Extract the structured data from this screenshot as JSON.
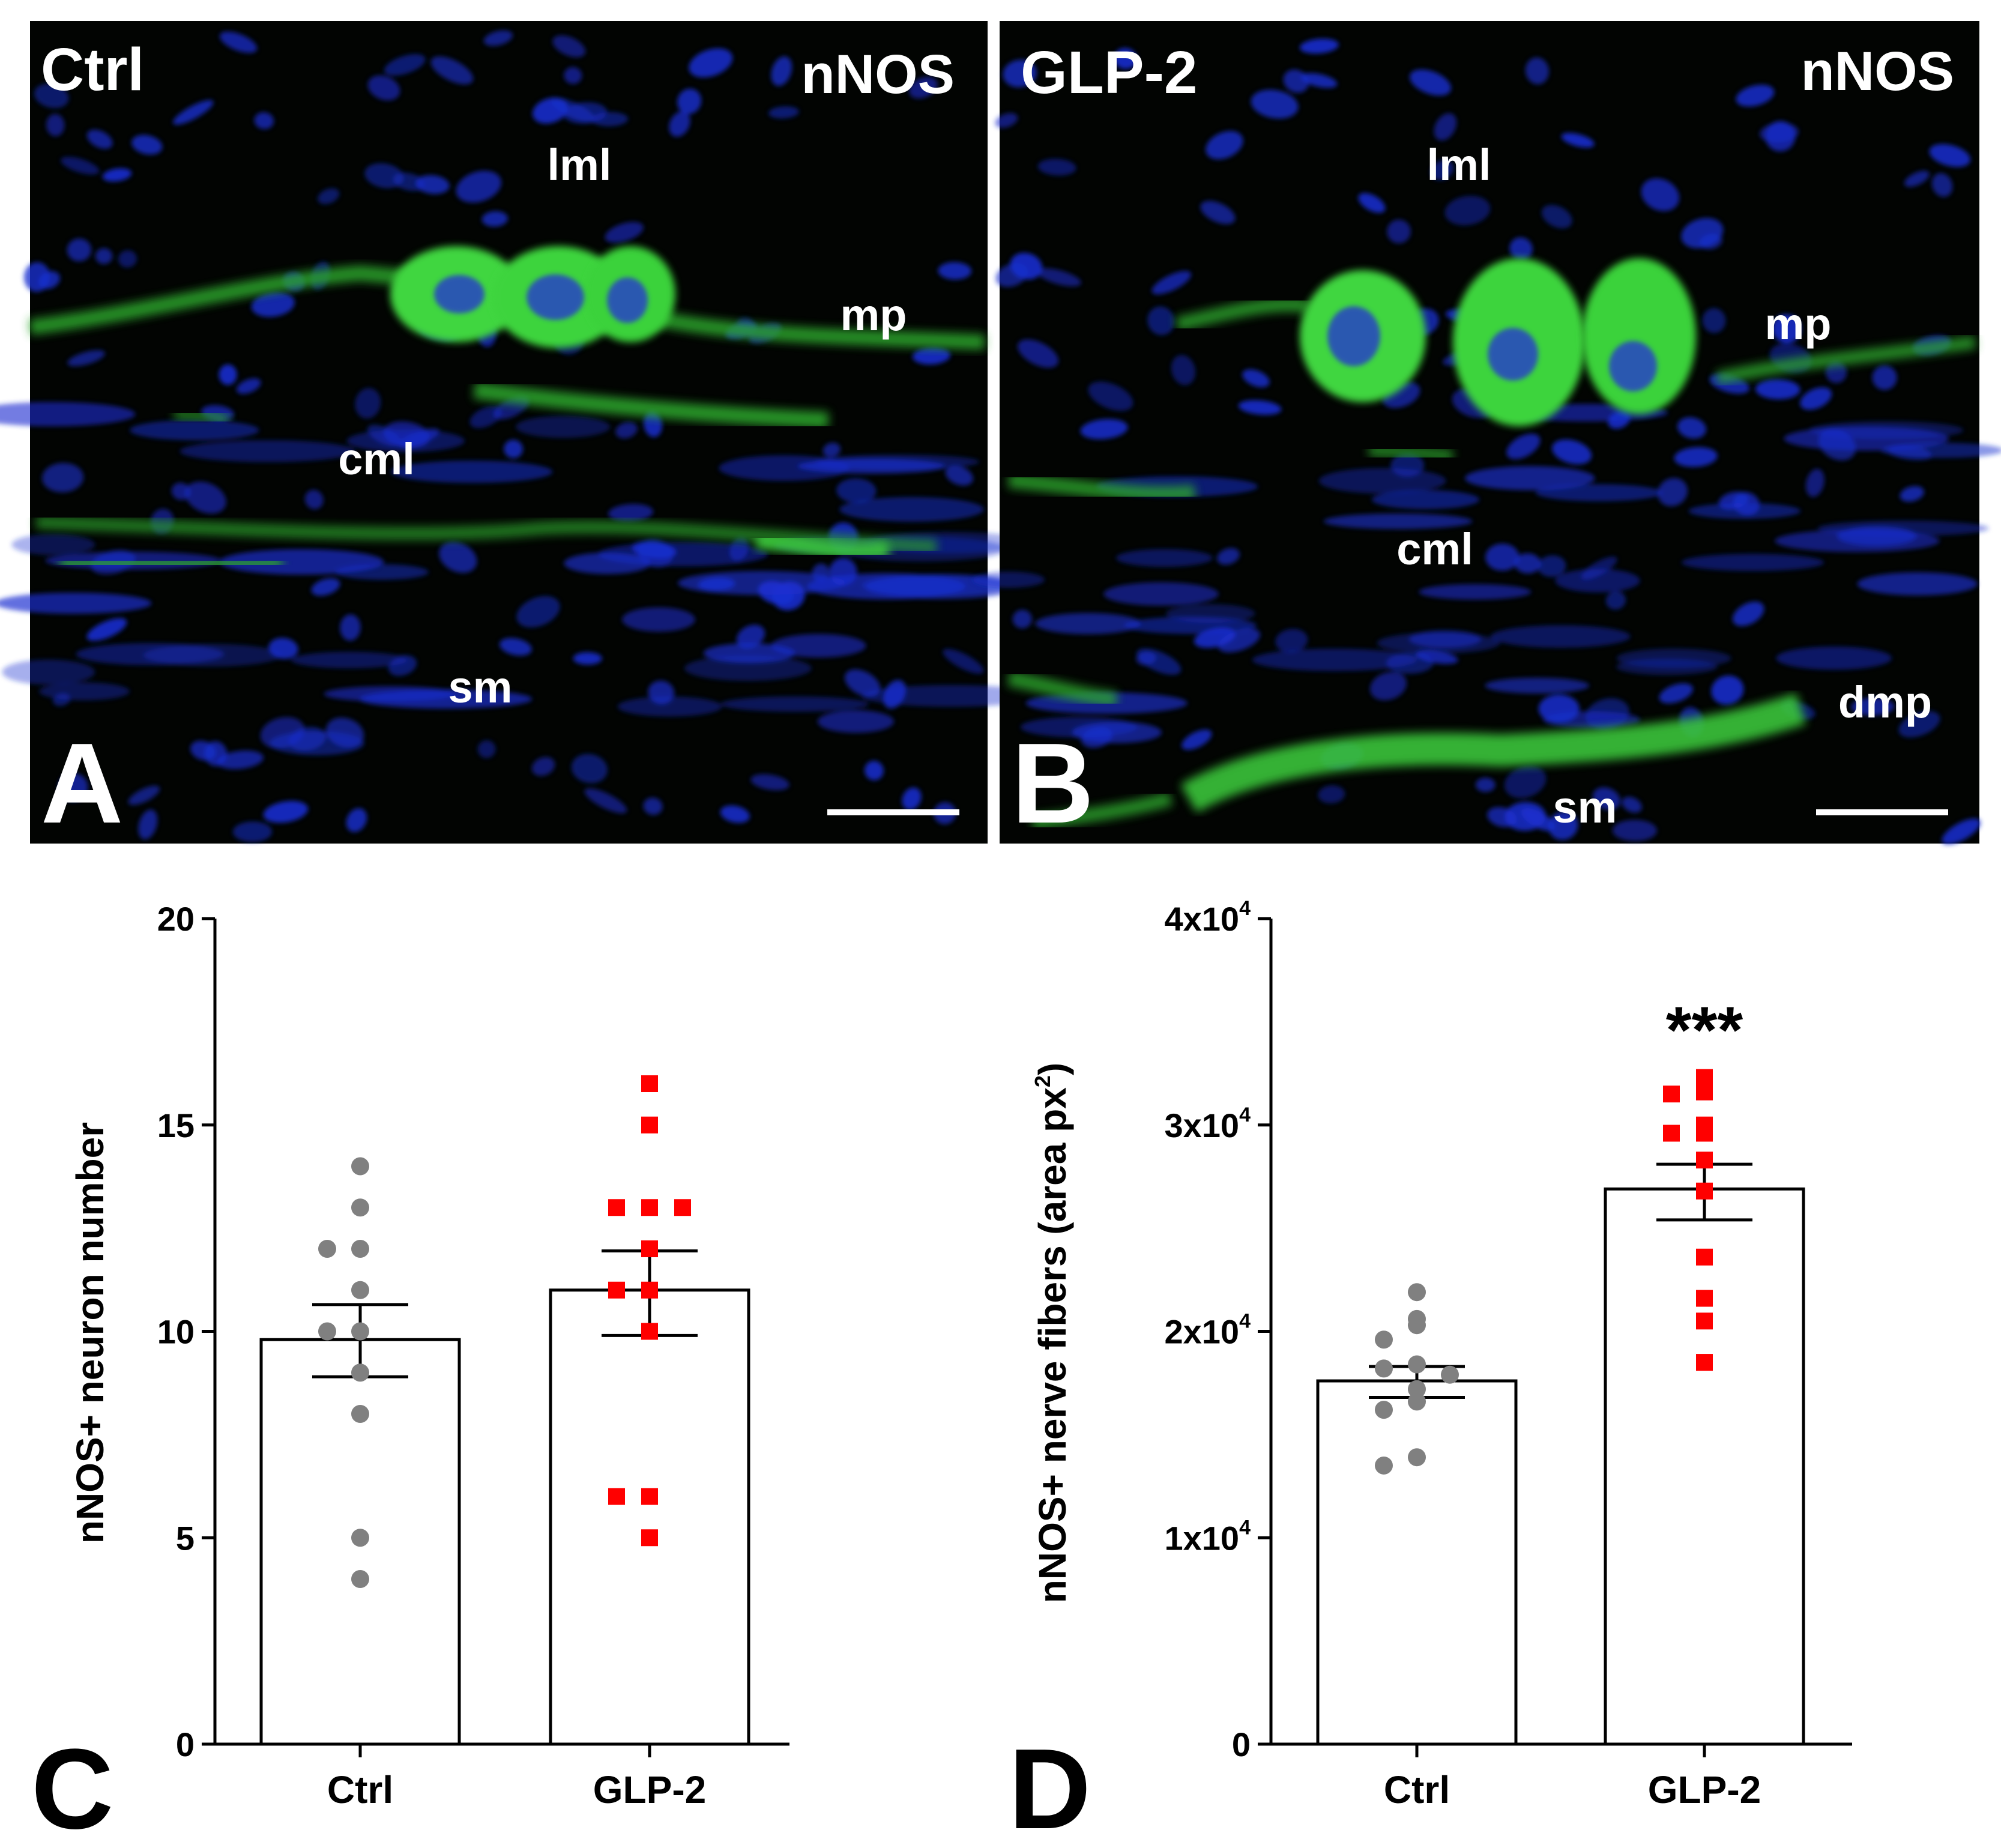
{
  "panels": {
    "A": {
      "letter": "A",
      "group_label": "Ctrl",
      "stain_label": "nNOS",
      "annotations": {
        "lml": "lml",
        "mp": "mp",
        "cml": "cml",
        "sm": "sm"
      }
    },
    "B": {
      "letter": "B",
      "group_label": "GLP-2",
      "stain_label": "nNOS",
      "annotations": {
        "lml": "lml",
        "mp": "mp",
        "cml": "cml",
        "dmp": "dmp",
        "sm": "sm"
      }
    },
    "C": {
      "letter": "C"
    },
    "D": {
      "letter": "D"
    }
  },
  "colors": {
    "ctrl_points": "#808080",
    "glp2_points": "#ff0000",
    "nuclei_blue": "#1a2fd0",
    "nnos_green": "#38d838"
  },
  "chart_data": [
    {
      "panel": "C",
      "type": "bar",
      "categories": [
        "Ctrl",
        "GLP-2"
      ],
      "ylabel": "nNOS+ neuron number",
      "ylim": [
        0,
        20
      ],
      "yticks": [
        0,
        5,
        10,
        15,
        20
      ],
      "ytick_labels": [
        "0",
        "5",
        "10",
        "15",
        "20"
      ],
      "series": [
        {
          "values": [
            9.8,
            11.0
          ],
          "sem_low": [
            8.9,
            9.9
          ],
          "sem_high": [
            10.65,
            11.95
          ]
        }
      ],
      "points": [
        {
          "category": "Ctrl",
          "marker": "circle",
          "values": [
            14,
            13,
            12,
            12,
            11,
            10,
            10,
            9,
            8,
            5,
            4
          ]
        },
        {
          "category": "GLP-2",
          "marker": "square",
          "values": [
            16,
            15,
            13,
            13,
            13,
            12,
            11,
            11,
            10,
            6,
            6,
            5
          ]
        }
      ],
      "annotation": ""
    },
    {
      "panel": "D",
      "type": "bar",
      "categories": [
        "Ctrl",
        "GLP-2"
      ],
      "ylabel_main": "nNOS+ nerve fibers (area px",
      "ylabel_sup": "2",
      "ylabel_end": ")",
      "ylim": [
        0,
        40000
      ],
      "yticks": [
        0,
        10000,
        20000,
        30000,
        40000
      ],
      "ytick_labels": [
        {
          "base": "0",
          "exp": ""
        },
        {
          "base": "1x10",
          "exp": "4"
        },
        {
          "base": "2x10",
          "exp": "4"
        },
        {
          "base": "3x10",
          "exp": "4"
        },
        {
          "base": "4x10",
          "exp": "4"
        }
      ],
      "series": [
        {
          "values": [
            17600,
            26900
          ],
          "sem_low": [
            16800,
            25400
          ],
          "sem_high": [
            18300,
            28100
          ]
        }
      ],
      "points": [
        {
          "category": "Ctrl",
          "marker": "circle",
          "values": [
            21900,
            20600,
            20300,
            19600,
            18400,
            18200,
            17900,
            17200,
            16600,
            16200,
            13900,
            13500
          ]
        },
        {
          "category": "GLP-2",
          "marker": "square",
          "values": [
            32300,
            31600,
            31500,
            30000,
            29600,
            29600,
            28300,
            26800,
            23600,
            21600,
            20500,
            18500
          ]
        }
      ],
      "annotation": "***"
    }
  ]
}
